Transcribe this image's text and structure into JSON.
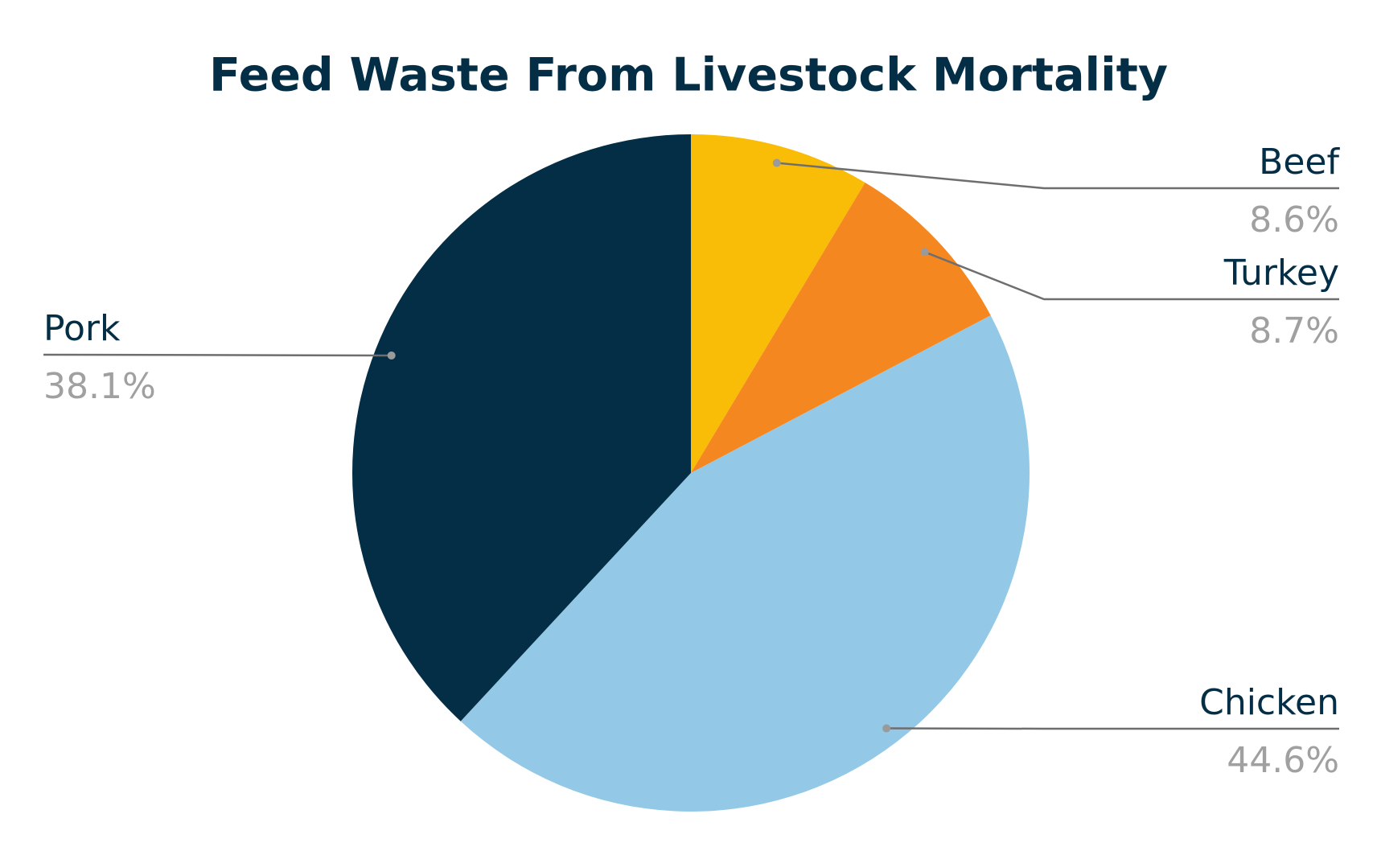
{
  "chart_data": {
    "type": "pie",
    "title": "Feed Waste From Livestock Mortality",
    "categories": [
      "Beef",
      "Turkey",
      "Chicken",
      "Pork"
    ],
    "values": [
      8.6,
      8.7,
      44.6,
      38.1
    ],
    "value_labels": [
      "8.6%",
      "8.7%",
      "44.6%",
      "38.1%"
    ],
    "colors": [
      "#f9bd07",
      "#f58720",
      "#93c9e6",
      "#032e46"
    ]
  }
}
